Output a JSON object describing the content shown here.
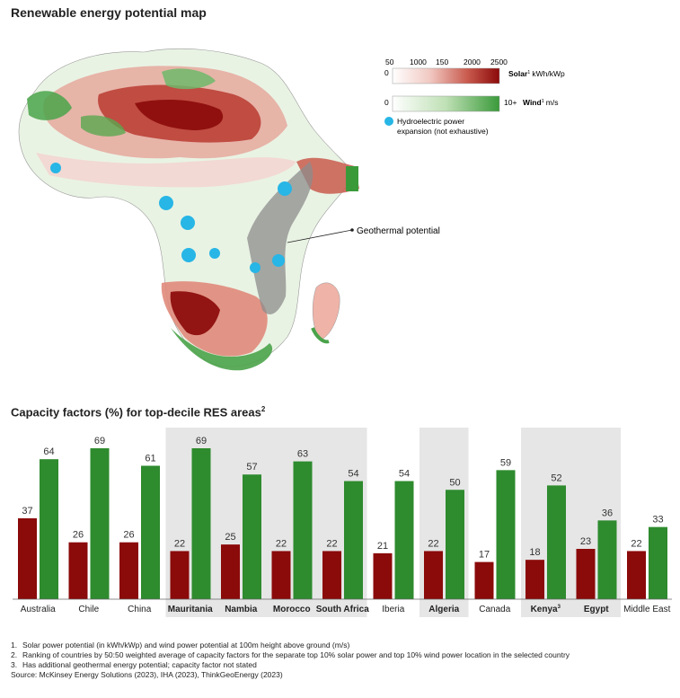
{
  "title": "Renewable energy potential map",
  "map": {
    "solar_legend": {
      "ticks": [
        "0",
        "50",
        "1000",
        "150",
        "2000",
        "2500"
      ],
      "label": "Solar",
      "sup": "1",
      "unit": "kWh/kWp"
    },
    "wind_legend": {
      "ticks": [
        "0",
        "10+"
      ],
      "label": "Wind",
      "sup": "1",
      "unit": "m/s"
    },
    "hydro_legend": {
      "line1": "Hydroelectric power",
      "line2": "expansion (not exhaustive)"
    },
    "geothermal_label": "Geothermal potential",
    "colors": {
      "solar_low": "#f3d6d0",
      "solar_high": "#8b0a0a",
      "wind": "#3a9a3a",
      "hydro": "#27b6e6",
      "geothermal": "#8c8c8c"
    }
  },
  "chart_data": {
    "type": "bar",
    "title": "Capacity factors (%) for top-decile RES areas",
    "title_sup": "2",
    "categories": [
      "Australia",
      "Chile",
      "China",
      "Mauritania",
      "Nambia",
      "Morocco",
      "South Africa",
      "Iberia",
      "Algeria",
      "Canada",
      "Kenya",
      "Egypt",
      "Middle East"
    ],
    "category_sup": [
      "",
      "",
      "",
      "",
      "",
      "",
      "",
      "",
      "",
      "",
      "3",
      "",
      ""
    ],
    "bold_categories": [
      "Mauritania",
      "Nambia",
      "Morocco",
      "South Africa",
      "Algeria",
      "Kenya",
      "Egypt"
    ],
    "shaded_groups": [
      [
        "Mauritania",
        "South Africa"
      ],
      [
        "Algeria"
      ],
      [
        "Kenya",
        "Egypt"
      ]
    ],
    "series": [
      {
        "values": [
          37,
          26,
          26,
          22,
          25,
          22,
          22,
          21,
          22,
          17,
          18,
          23,
          22
        ],
        "color": "#8b0a0a"
      },
      {
        "values": [
          64,
          69,
          61,
          69,
          57,
          63,
          54,
          54,
          50,
          59,
          52,
          36,
          33
        ],
        "color": "#2e8b2e"
      }
    ],
    "ylim": [
      0,
      69
    ]
  },
  "footnotes": [
    {
      "num": "1.",
      "text": "Solar power potential (in kWh/kWp) and wind power potential at 100m height above ground (m/s)"
    },
    {
      "num": "2.",
      "text": "Ranking of countries by 50:50 weighted average of capacity factors for the separate top 10% solar power and top 10% wind power location in the selected country"
    },
    {
      "num": "3.",
      "text": "Has additional geothermal energy potential; capacity factor not stated"
    }
  ],
  "source": "Source: McKinsey Energy Solutions (2023), IHA (2023), ThinkGeoEnergy (2023)"
}
